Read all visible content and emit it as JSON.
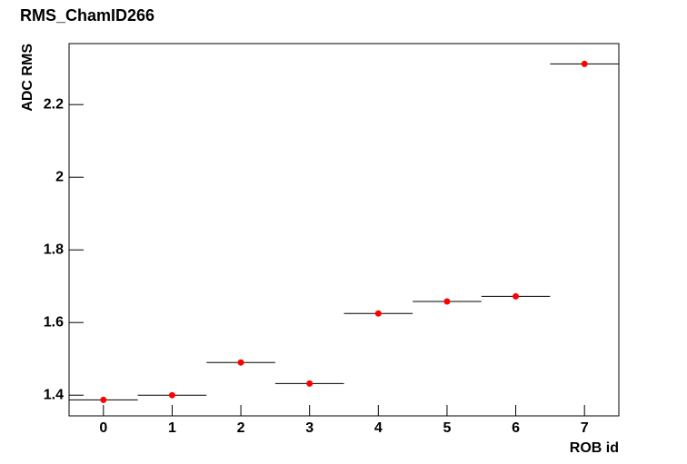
{
  "chart_data": {
    "type": "scatter",
    "title": "RMS_ChamID266",
    "x_label": "ROB id",
    "y_label": "ADC RMS",
    "x": [
      0,
      1,
      2,
      3,
      4,
      5,
      6,
      7
    ],
    "values": [
      1.387,
      1.4,
      1.49,
      1.432,
      1.625,
      1.658,
      1.672,
      2.312
    ],
    "color": "#ff0000",
    "xlim": [
      -0.5,
      7.5
    ],
    "xticks": [
      0,
      1,
      2,
      3,
      4,
      5,
      6,
      7
    ],
    "ylim": [
      1.343,
      2.368
    ],
    "yticks": [
      1.4,
      1.6,
      1.8,
      2,
      2.2
    ]
  }
}
